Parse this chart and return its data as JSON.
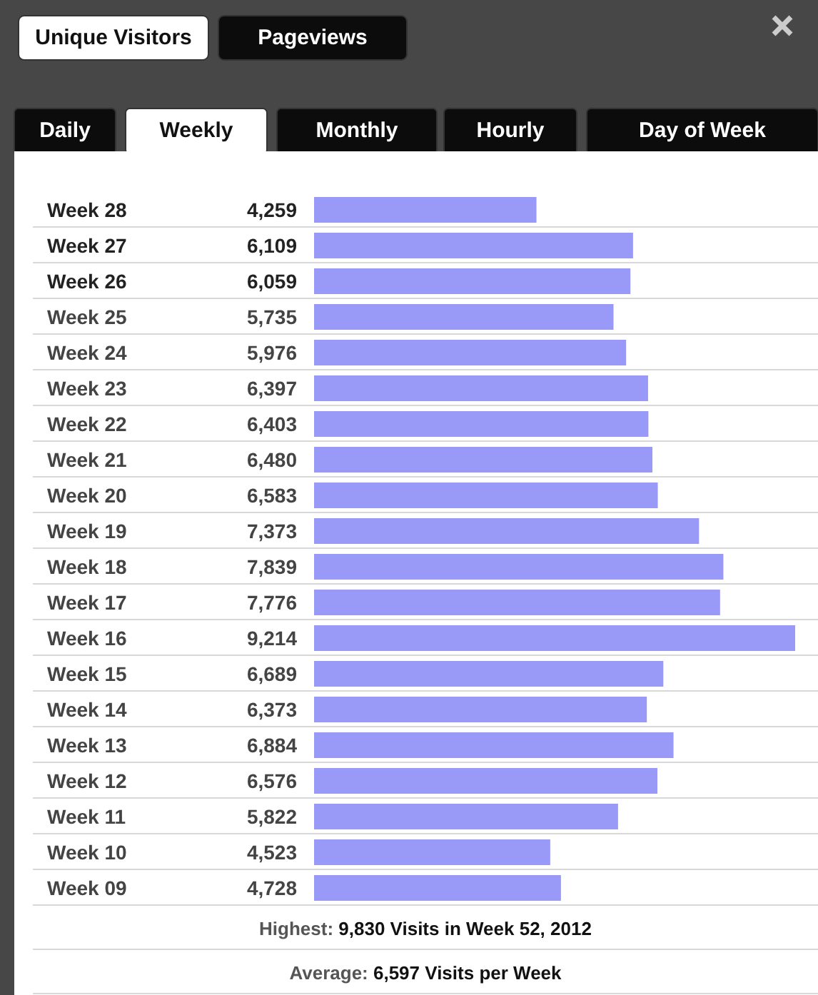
{
  "chart_data": {
    "type": "bar",
    "orientation": "horizontal",
    "color": "#9999f7",
    "value_labels": [
      "4,259",
      "6,109",
      "6,059",
      "5,735",
      "5,976",
      "6,397",
      "6,403",
      "6,480",
      "6,583",
      "7,373",
      "7,839",
      "7,776",
      "9,214",
      "6,689",
      "6,373",
      "6,884",
      "6,576",
      "5,822",
      "4,523",
      "4,728"
    ],
    "categories": [
      "Week 28",
      "Week 27",
      "Week 26",
      "Week 25",
      "Week 24",
      "Week 23",
      "Week 22",
      "Week 21",
      "Week 20",
      "Week 19",
      "Week 18",
      "Week 17",
      "Week 16",
      "Week 15",
      "Week 14",
      "Week 13",
      "Week 12",
      "Week 11",
      "Week 10",
      "Week 09"
    ],
    "values": [
      4259,
      6109,
      6059,
      5735,
      5976,
      6397,
      6403,
      6480,
      6583,
      7373,
      7839,
      7776,
      9214,
      6689,
      6373,
      6884,
      6576,
      5822,
      4523,
      4728
    ],
    "annotations": [
      "Unique Visitors",
      "Pageviews",
      "Daily",
      "Weekly",
      "Monthly",
      "Hourly",
      "Day of Week",
      "Highest: 9,830 Visits in Week 52, 2012",
      "Average: 6,597 Visits per Week"
    ]
  }
}
